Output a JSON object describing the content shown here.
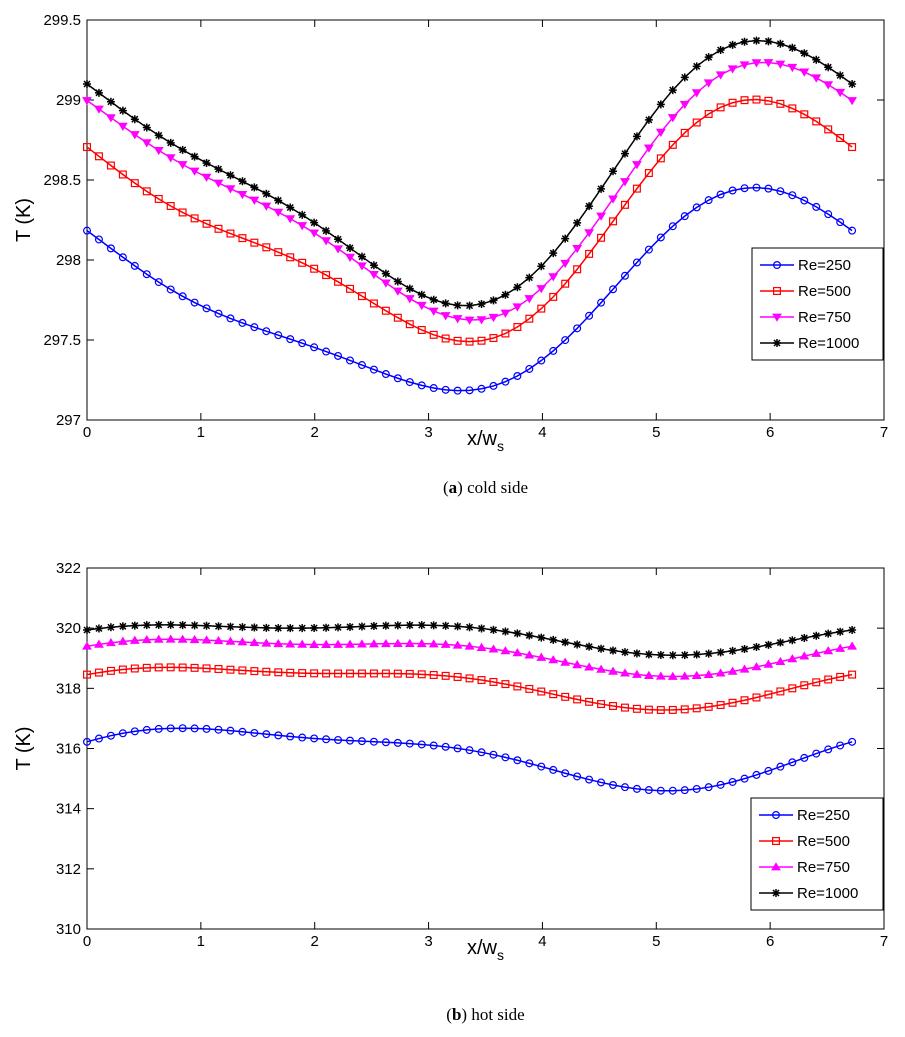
{
  "chart_data": [
    {
      "type": "line",
      "caption_letter": "a",
      "caption_text": "cold side",
      "xlabel_main": "x/w",
      "xlabel_sub": "s",
      "ylabel": "T (K)",
      "xlim": [
        0,
        7
      ],
      "ylim": [
        297,
        299.5
      ],
      "xticks": [
        "0",
        "1",
        "2",
        "3",
        "4",
        "5",
        "6",
        "7"
      ],
      "yticks": [
        "297",
        "297.5",
        "298",
        "298.5",
        "299",
        "299.5"
      ],
      "legend_position": "right",
      "x_end": 6.72,
      "series": [
        {
          "name": "Re=250",
          "color": "#0000ff",
          "marker": "circle",
          "mean": 297.76,
          "amp1": 0.585,
          "phase1": 2.12,
          "amp2": 0.145,
          "phase2": 3.69
        },
        {
          "name": "Re=500",
          "color": "#ff0000",
          "marker": "square",
          "mean": 298.22,
          "amp1": 0.675,
          "phase1": 2.02,
          "amp2": 0.19,
          "phase2": 3.84
        },
        {
          "name": "Re=750",
          "color": "#ff00ff",
          "marker": "triangle-down",
          "mean": 298.43,
          "amp1": 0.73,
          "phase1": 1.92,
          "amp2": 0.185,
          "phase2": 3.84
        },
        {
          "name": "Re=1000",
          "color": "#000000",
          "marker": "star",
          "mean": 298.54,
          "amp1": 0.755,
          "phase1": 1.98,
          "amp2": 0.185,
          "phase2": 3.94
        }
      ]
    },
    {
      "type": "line",
      "caption_letter": "b",
      "caption_text": "hot side",
      "xlabel_main": "x/w",
      "xlabel_sub": "s",
      "ylabel": "T (K)",
      "xlim": [
        0,
        7
      ],
      "ylim": [
        310,
        322
      ],
      "xticks": [
        "0",
        "1",
        "2",
        "3",
        "4",
        "5",
        "6",
        "7"
      ],
      "yticks": [
        "310",
        "312",
        "314",
        "316",
        "318",
        "320",
        "322"
      ],
      "legend_position": "bottom-right",
      "x_end": 6.72,
      "series": [
        {
          "name": "Re=250",
          "color": "#0000ff",
          "marker": "circle",
          "mean": 315.8,
          "amp1": 0.93,
          "phase1": 0.15,
          "amp2": 0.31,
          "phase2": 1.15
        },
        {
          "name": "Re=500",
          "color": "#ff0000",
          "marker": "square",
          "mean": 318.15,
          "amp1": 0.63,
          "phase1": 0.1,
          "amp2": 0.25,
          "phase2": 1.35
        },
        {
          "name": "Re=750",
          "color": "#ff00ff",
          "marker": "triangle-up",
          "mean": 319.17,
          "amp1": 0.54,
          "phase1": 0.0,
          "amp2": 0.24,
          "phase2": 1.25
        },
        {
          "name": "Re=1000",
          "color": "#000000",
          "marker": "star",
          "mean": 319.77,
          "amp1": 0.45,
          "phase1": -0.1,
          "amp2": 0.22,
          "phase2": 1.35
        }
      ]
    }
  ]
}
